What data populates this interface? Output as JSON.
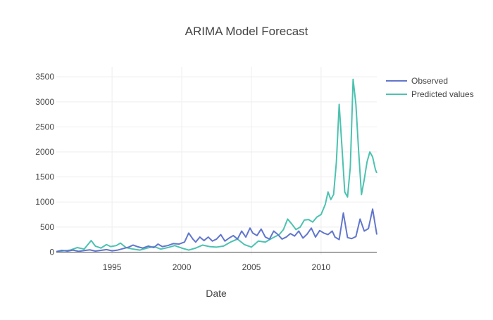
{
  "chart_data": {
    "type": "line",
    "title": "ARIMA Model Forecast",
    "xlabel": "Date",
    "ylabel": "",
    "xlim": [
      1991.0,
      2014.0
    ],
    "ylim": [
      -50,
      3700
    ],
    "x_ticks": [
      1995,
      2000,
      2005,
      2010
    ],
    "x_tick_labels": [
      "1995",
      "2000",
      "2005",
      "2010"
    ],
    "y_ticks": [
      0,
      500,
      1000,
      1500,
      2000,
      2500,
      3000,
      3500
    ],
    "y_tick_labels": [
      "0",
      "500",
      "1000",
      "1500",
      "2000",
      "2500",
      "3000",
      "3500"
    ],
    "grid": true,
    "legend_position": "top-right",
    "series": [
      {
        "name": "Observed",
        "color": "#6176cc",
        "x": [
          1991.0,
          1991.4,
          1991.8,
          1992.2,
          1992.6,
          1993.0,
          1993.4,
          1993.8,
          1994.2,
          1994.6,
          1995.0,
          1995.4,
          1995.8,
          1996.2,
          1996.5,
          1996.8,
          1997.2,
          1997.6,
          1998.0,
          1998.3,
          1998.6,
          1999.0,
          1999.4,
          1999.8,
          2000.2,
          2000.5,
          2000.8,
          2001.0,
          2001.3,
          2001.6,
          2001.9,
          2002.2,
          2002.5,
          2002.8,
          2003.1,
          2003.4,
          2003.7,
          2004.0,
          2004.3,
          2004.6,
          2004.9,
          2005.1,
          2005.4,
          2005.7,
          2006.0,
          2006.3,
          2006.6,
          2006.9,
          2007.2,
          2007.5,
          2007.8,
          2008.1,
          2008.4,
          2008.7,
          2009.0,
          2009.3,
          2009.6,
          2009.9,
          2010.2,
          2010.5,
          2010.8,
          2011.0,
          2011.3,
          2011.6,
          2011.9,
          2012.2,
          2012.5,
          2012.8,
          2013.1,
          2013.4,
          2013.7,
          2014.0
        ],
        "values": [
          10,
          35,
          20,
          40,
          15,
          30,
          45,
          20,
          35,
          50,
          25,
          40,
          70,
          100,
          140,
          110,
          80,
          120,
          90,
          160,
          110,
          130,
          170,
          160,
          200,
          380,
          260,
          200,
          300,
          230,
          300,
          220,
          260,
          350,
          220,
          280,
          330,
          260,
          420,
          300,
          480,
          380,
          330,
          460,
          300,
          260,
          420,
          350,
          260,
          300,
          370,
          320,
          420,
          280,
          360,
          480,
          300,
          430,
          380,
          350,
          420,
          300,
          250,
          780,
          290,
          270,
          310,
          660,
          420,
          470,
          860,
          350
        ]
      },
      {
        "name": "Predicted values",
        "color": "#4cc2b0",
        "x": [
          1991.0,
          1991.5,
          1992.0,
          1992.5,
          1993.0,
          1993.5,
          1993.8,
          1994.2,
          1994.6,
          1994.9,
          1995.3,
          1995.6,
          1996.0,
          1996.5,
          1997.0,
          1997.5,
          1998.0,
          1998.5,
          1999.0,
          1999.5,
          2000.0,
          2000.5,
          2001.0,
          2001.5,
          2002.0,
          2002.5,
          2003.0,
          2003.5,
          2004.0,
          2004.5,
          2005.0,
          2005.5,
          2006.0,
          2006.5,
          2007.0,
          2007.3,
          2007.6,
          2007.9,
          2008.2,
          2008.5,
          2008.8,
          2009.1,
          2009.4,
          2009.7,
          2010.0,
          2010.3,
          2010.5,
          2010.7,
          2010.9,
          2011.1,
          2011.3,
          2011.5,
          2011.7,
          2011.9,
          2012.1,
          2012.3,
          2012.5,
          2012.7,
          2012.9,
          2013.1,
          2013.3,
          2013.5,
          2013.7,
          2013.9,
          2014.0
        ],
        "values": [
          5,
          25,
          40,
          90,
          60,
          230,
          120,
          80,
          150,
          110,
          130,
          180,
          90,
          60,
          40,
          80,
          110,
          60,
          90,
          130,
          80,
          40,
          80,
          140,
          110,
          100,
          120,
          200,
          260,
          150,
          100,
          220,
          200,
          280,
          350,
          450,
          660,
          560,
          450,
          500,
          640,
          650,
          600,
          700,
          750,
          950,
          1200,
          1050,
          1150,
          1800,
          2950,
          2100,
          1200,
          1100,
          1700,
          3450,
          2950,
          2000,
          1150,
          1450,
          1800,
          2000,
          1900,
          1650,
          1580
        ]
      }
    ]
  }
}
